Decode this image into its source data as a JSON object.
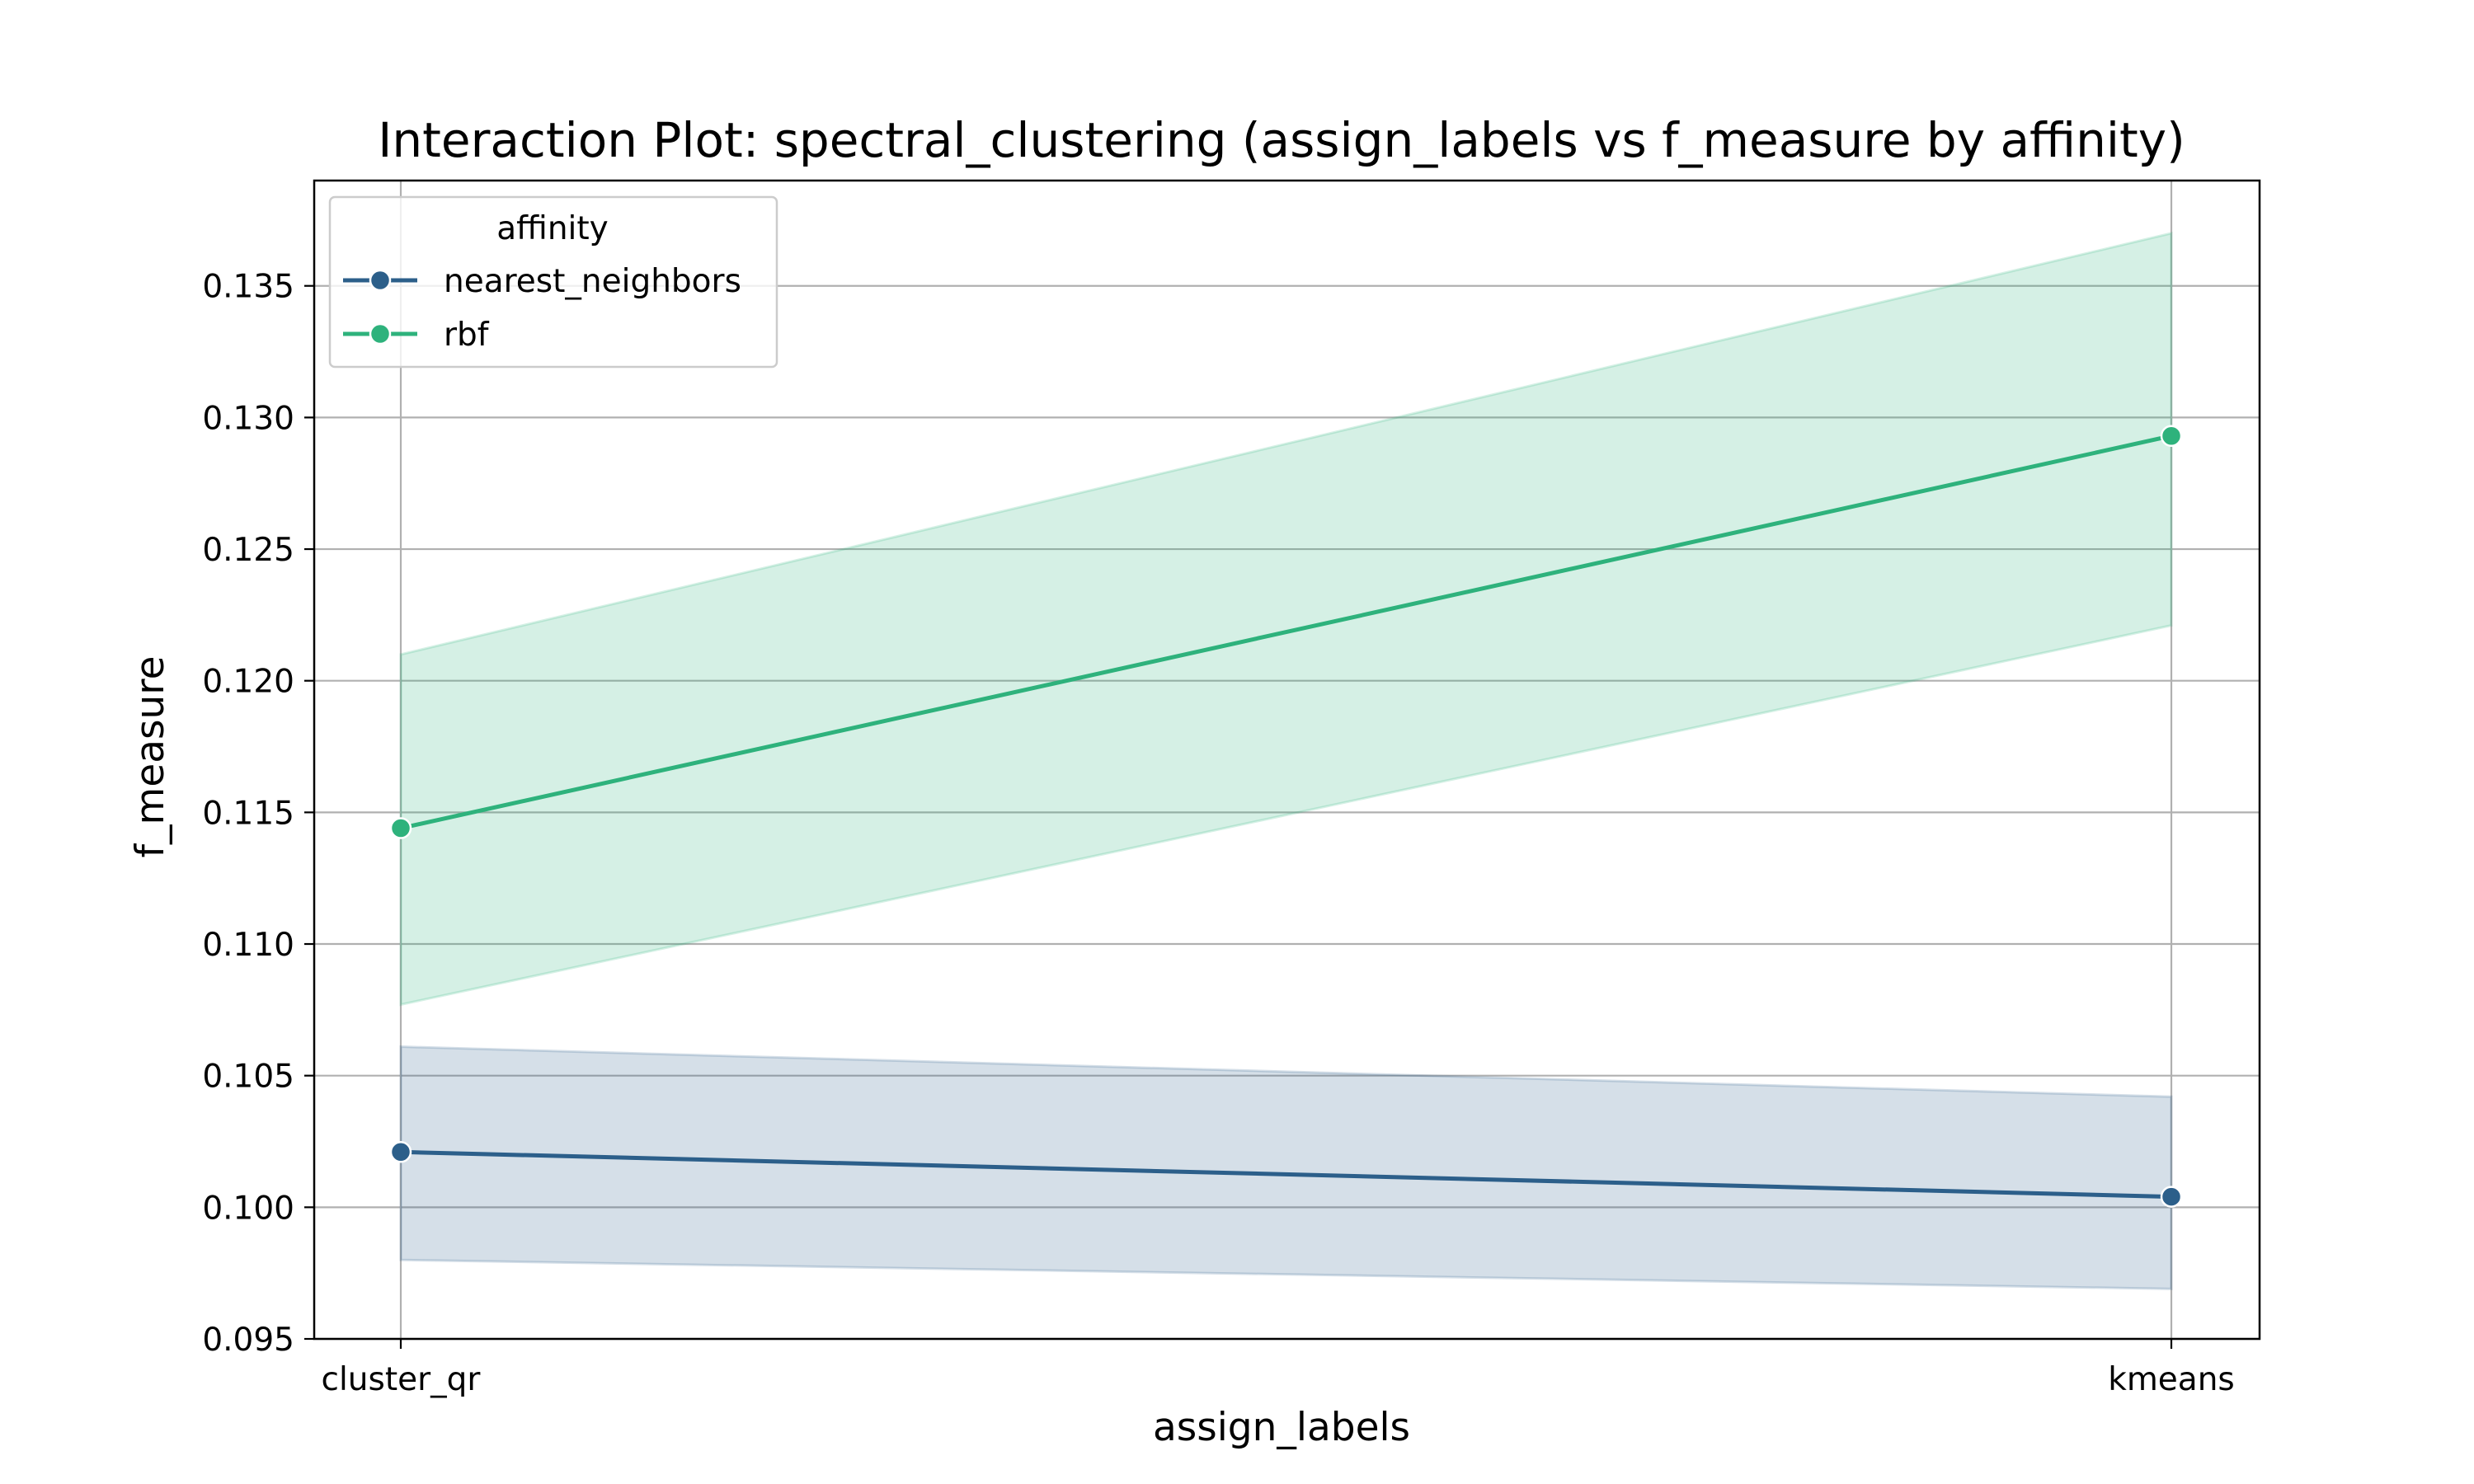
{
  "colors": {
    "nearest_neighbors": "#2c5f8a",
    "rbf": "#2eb27c",
    "grid": "#b0b0b0",
    "axes": "#000000",
    "legend_border": "#cccccc"
  },
  "chart_data": {
    "type": "line",
    "title": "Interaction Plot: spectral_clustering (assign_labels vs f_measure by affinity)",
    "xlabel": "assign_labels",
    "ylabel": "f_measure",
    "categories": [
      "cluster_qr",
      "kmeans"
    ],
    "ylim": [
      0.095,
      0.139
    ],
    "yticks": [
      0.095,
      0.1,
      0.105,
      0.11,
      0.115,
      0.12,
      0.125,
      0.13,
      0.135
    ],
    "ytick_labels": [
      "0.095",
      "0.100",
      "0.105",
      "0.110",
      "0.115",
      "0.120",
      "0.125",
      "0.130",
      "0.135"
    ],
    "grid": true,
    "legend": {
      "title": "affinity",
      "placement": "top-left"
    },
    "series": [
      {
        "name": "nearest_neighbors",
        "color_key": "nearest_neighbors",
        "values": [
          0.1021,
          0.1004
        ],
        "ci_lower": [
          0.098,
          0.0969
        ],
        "ci_upper": [
          0.1061,
          0.1042
        ]
      },
      {
        "name": "rbf",
        "color_key": "rbf",
        "values": [
          0.1144,
          0.1293
        ],
        "ci_lower": [
          0.1077,
          0.1221
        ],
        "ci_upper": [
          0.121,
          0.137
        ]
      }
    ]
  }
}
